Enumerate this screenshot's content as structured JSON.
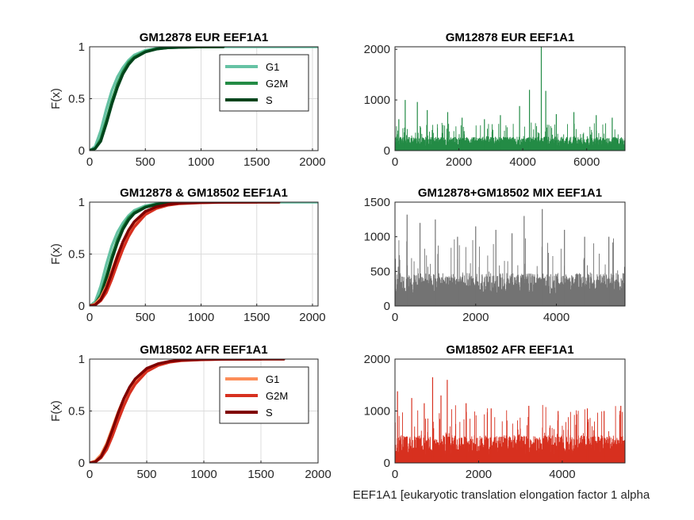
{
  "figure": {
    "xlabel": "EEF1A1 [eukaryotic translation elongation factor 1 alpha"
  },
  "chart_data": [
    {
      "id": "p1",
      "type": "line",
      "title": "GM12878 EUR EEF1A1",
      "xlabel": "",
      "ylabel": "F(x)",
      "xlim": [
        0,
        2050
      ],
      "ylim": [
        0,
        1
      ],
      "xticks": [
        0,
        500,
        1000,
        1500,
        2000
      ],
      "yticks": [
        0,
        0.5,
        1
      ],
      "grid": true,
      "legend": {
        "entries": [
          "G1",
          "G2M",
          "S"
        ],
        "placement": "top-right"
      },
      "series": [
        {
          "name": "G1",
          "color": "#66c2a4",
          "x": [
            0,
            50,
            100,
            150,
            200,
            250,
            300,
            350,
            400,
            500,
            600,
            700,
            800,
            1000,
            1200,
            1500,
            2050
          ],
          "y": [
            0,
            0.04,
            0.19,
            0.4,
            0.58,
            0.71,
            0.8,
            0.87,
            0.92,
            0.965,
            0.985,
            0.993,
            0.997,
            0.999,
            1,
            1,
            1
          ]
        },
        {
          "name": "G2M",
          "color": "#238b45",
          "x": [
            0,
            50,
            100,
            150,
            200,
            250,
            300,
            350,
            400,
            500,
            600,
            700,
            800,
            1000,
            1200
          ],
          "y": [
            0,
            0.02,
            0.11,
            0.29,
            0.48,
            0.64,
            0.76,
            0.85,
            0.9,
            0.955,
            0.98,
            0.99,
            0.995,
            0.999,
            1
          ]
        },
        {
          "name": "S",
          "color": "#00441b",
          "x": [
            0,
            50,
            100,
            150,
            200,
            250,
            300,
            350,
            400,
            500,
            600,
            700,
            800,
            1000,
            1200
          ],
          "y": [
            0,
            0.02,
            0.09,
            0.26,
            0.45,
            0.61,
            0.74,
            0.83,
            0.89,
            0.95,
            0.978,
            0.99,
            0.995,
            0.999,
            1
          ]
        }
      ]
    },
    {
      "id": "p2",
      "type": "bar",
      "title": "GM12878 EUR EEF1A1",
      "xlabel": "",
      "ylabel": "",
      "xlim": [
        0,
        7200
      ],
      "ylim": [
        0,
        2050
      ],
      "xticks": [
        0,
        2000,
        4000,
        6000
      ],
      "yticks": [
        0,
        1000,
        2000
      ],
      "grid": false,
      "color": "#238b45",
      "n": 1200,
      "base": 220,
      "peaks": [
        [
          120,
          620
        ],
        [
          320,
          1000
        ],
        [
          700,
          960
        ],
        [
          1010,
          800
        ],
        [
          1650,
          760
        ],
        [
          2100,
          650
        ],
        [
          2800,
          620
        ],
        [
          3300,
          700
        ],
        [
          3900,
          880
        ],
        [
          4210,
          1200
        ],
        [
          4580,
          2050
        ],
        [
          4720,
          1180
        ],
        [
          5050,
          720
        ],
        [
          5600,
          760
        ],
        [
          6300,
          700
        ],
        [
          6800,
          650
        ]
      ]
    },
    {
      "id": "p3",
      "type": "line",
      "title": "GM12878 & GM18502 EEF1A1",
      "xlabel": "",
      "ylabel": "F(x)",
      "xlim": [
        0,
        2050
      ],
      "ylim": [
        0,
        1
      ],
      "xticks": [
        0,
        500,
        1000,
        1500,
        2000
      ],
      "yticks": [
        0,
        0.5,
        1
      ],
      "grid": true,
      "series": [
        {
          "name": "G1",
          "color": "#66c2a4",
          "x": [
            0,
            50,
            100,
            150,
            200,
            250,
            300,
            350,
            400,
            500,
            600,
            700,
            800,
            1000,
            1200,
            1500,
            2050
          ],
          "y": [
            0,
            0.04,
            0.19,
            0.4,
            0.58,
            0.71,
            0.8,
            0.87,
            0.92,
            0.965,
            0.985,
            0.993,
            0.997,
            0.999,
            1,
            1,
            1
          ]
        },
        {
          "name": "G2M",
          "color": "#238b45",
          "x": [
            0,
            50,
            100,
            150,
            200,
            250,
            300,
            350,
            400,
            500,
            600,
            700,
            800,
            1000,
            1200
          ],
          "y": [
            0,
            0.02,
            0.11,
            0.29,
            0.48,
            0.64,
            0.76,
            0.85,
            0.9,
            0.955,
            0.98,
            0.99,
            0.995,
            0.999,
            1
          ]
        },
        {
          "name": "S",
          "color": "#00441b",
          "x": [
            0,
            50,
            100,
            150,
            200,
            250,
            300,
            350,
            400,
            500,
            600,
            700,
            800,
            1000,
            1200
          ],
          "y": [
            0,
            0.02,
            0.09,
            0.26,
            0.45,
            0.61,
            0.74,
            0.83,
            0.89,
            0.95,
            0.978,
            0.99,
            0.995,
            0.999,
            1
          ]
        },
        {
          "name": "G1",
          "color": "#fc8d59",
          "x": [
            0,
            50,
            100,
            150,
            200,
            250,
            300,
            350,
            400,
            500,
            600,
            700,
            800,
            1000,
            1200,
            1500,
            1700
          ],
          "y": [
            0,
            0.02,
            0.08,
            0.19,
            0.34,
            0.49,
            0.62,
            0.72,
            0.8,
            0.9,
            0.95,
            0.975,
            0.988,
            0.996,
            0.999,
            1,
            1
          ]
        },
        {
          "name": "G2M",
          "color": "#d7301f",
          "x": [
            0,
            50,
            100,
            150,
            200,
            250,
            300,
            350,
            400,
            500,
            600,
            700,
            800,
            1000,
            1200,
            1500
          ],
          "y": [
            0,
            0.01,
            0.05,
            0.13,
            0.26,
            0.41,
            0.55,
            0.67,
            0.76,
            0.88,
            0.94,
            0.97,
            0.985,
            0.995,
            0.999,
            1
          ]
        },
        {
          "name": "S",
          "color": "#7f0000",
          "x": [
            0,
            50,
            100,
            150,
            200,
            250,
            300,
            350,
            400,
            500,
            600,
            700,
            800,
            1000,
            1200,
            1500,
            1700
          ],
          "y": [
            0,
            0.01,
            0.06,
            0.17,
            0.32,
            0.48,
            0.62,
            0.73,
            0.81,
            0.91,
            0.955,
            0.978,
            0.99,
            0.997,
            0.999,
            1,
            1
          ]
        }
      ]
    },
    {
      "id": "p4",
      "type": "bar",
      "title": "GM12878+GM18502 MIX EEF1A1",
      "xlabel": "",
      "ylabel": "",
      "xlim": [
        0,
        5700
      ],
      "ylim": [
        0,
        1500
      ],
      "xticks": [
        0,
        2000,
        4000
      ],
      "yticks": [
        0,
        500,
        1000,
        1500
      ],
      "grid": false,
      "color": "#737373",
      "n": 1000,
      "base": 380,
      "peaks": [
        [
          300,
          1320
        ],
        [
          620,
          1200
        ],
        [
          1000,
          1250
        ],
        [
          1550,
          1000
        ],
        [
          2000,
          1150
        ],
        [
          2500,
          1100
        ],
        [
          2900,
          1050
        ],
        [
          3200,
          1300
        ],
        [
          3650,
          1400
        ],
        [
          4200,
          1100
        ],
        [
          4700,
          1000
        ],
        [
          5300,
          1000
        ]
      ]
    },
    {
      "id": "p5",
      "type": "line",
      "title": "GM18502 AFR EEF1A1",
      "xlabel": "",
      "ylabel": "F(x)",
      "xlim": [
        0,
        2000
      ],
      "ylim": [
        0,
        1
      ],
      "xticks": [
        0,
        500,
        1000,
        1500,
        2000
      ],
      "yticks": [
        0,
        0.5,
        1
      ],
      "grid": true,
      "legend": {
        "entries": [
          "G1",
          "G2M",
          "S"
        ],
        "placement": "top-right"
      },
      "series": [
        {
          "name": "G1",
          "color": "#fc8d59",
          "x": [
            0,
            50,
            100,
            150,
            200,
            250,
            300,
            350,
            400,
            500,
            600,
            700,
            800,
            1000,
            1200,
            1500,
            1700
          ],
          "y": [
            0,
            0.02,
            0.08,
            0.19,
            0.34,
            0.49,
            0.62,
            0.72,
            0.8,
            0.9,
            0.95,
            0.975,
            0.988,
            0.996,
            0.999,
            1,
            1
          ]
        },
        {
          "name": "G2M",
          "color": "#d7301f",
          "x": [
            0,
            50,
            100,
            150,
            200,
            250,
            300,
            350,
            400,
            500,
            600,
            700,
            800,
            1000,
            1200,
            1500
          ],
          "y": [
            0,
            0.01,
            0.05,
            0.13,
            0.26,
            0.41,
            0.55,
            0.67,
            0.76,
            0.88,
            0.94,
            0.97,
            0.985,
            0.995,
            0.999,
            1
          ]
        },
        {
          "name": "S",
          "color": "#7f0000",
          "x": [
            0,
            50,
            100,
            150,
            200,
            250,
            300,
            350,
            400,
            500,
            600,
            700,
            800,
            1000,
            1200,
            1500,
            1700
          ],
          "y": [
            0,
            0.01,
            0.06,
            0.17,
            0.32,
            0.48,
            0.62,
            0.73,
            0.81,
            0.91,
            0.955,
            0.978,
            0.99,
            0.997,
            0.999,
            1,
            1
          ]
        }
      ]
    },
    {
      "id": "p6",
      "type": "bar",
      "title": "GM18502 AFR EEF1A1",
      "xlabel": "",
      "ylabel": "",
      "xlim": [
        0,
        5500
      ],
      "ylim": [
        0,
        2000
      ],
      "xticks": [
        0,
        2000,
        4000
      ],
      "yticks": [
        0,
        1000,
        2000
      ],
      "grid": false,
      "color": "#d7301f",
      "n": 950,
      "base": 430,
      "peaks": [
        [
          60,
          1380
        ],
        [
          400,
          1250
        ],
        [
          700,
          1150
        ],
        [
          900,
          1650
        ],
        [
          1100,
          1300
        ],
        [
          1250,
          1600
        ],
        [
          1700,
          1150
        ],
        [
          2300,
          1050
        ],
        [
          3200,
          1100
        ],
        [
          3900,
          1000
        ],
        [
          4600,
          1050
        ],
        [
          5000,
          1000
        ],
        [
          5400,
          1100
        ]
      ]
    }
  ]
}
